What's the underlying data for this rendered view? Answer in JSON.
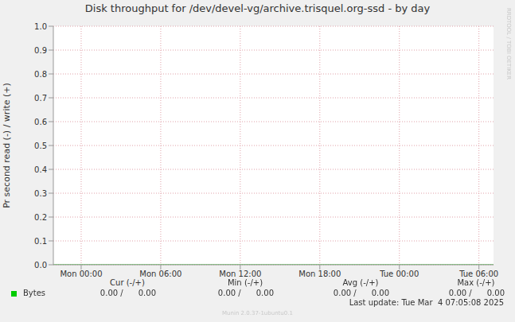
{
  "chart_data": {
    "type": "line",
    "title": "Disk throughput for /dev/devel-vg/archive.trisquel.org-ssd - by day",
    "y_label": "Pr second read (-) / write (+)",
    "x": [
      -2.1,
      0,
      6,
      12,
      18,
      24,
      30,
      31.1
    ],
    "xlim": [
      -2.1,
      31.1
    ],
    "xticks": [
      {
        "value": 0,
        "label": "Mon 00:00"
      },
      {
        "value": 6,
        "label": "Mon 06:00"
      },
      {
        "value": 12,
        "label": "Mon 12:00"
      },
      {
        "value": 18,
        "label": "Mon 18:00"
      },
      {
        "value": 24,
        "label": "Tue 00:00"
      },
      {
        "value": 30,
        "label": "Tue 06:00"
      }
    ],
    "ylim": [
      0,
      1
    ],
    "yticks": [
      {
        "value": 0,
        "label": "0.0"
      },
      0.1,
      0.2,
      0.3,
      0.4,
      0.5,
      0.6,
      0.7,
      0.8,
      0.9,
      {
        "value": 1,
        "label": "1.0"
      }
    ],
    "grid": true,
    "series": [
      {
        "name": "Bytes",
        "color": "#00cc00",
        "values": [
          0,
          0,
          0,
          0,
          0,
          0,
          0,
          0
        ]
      }
    ]
  },
  "summary": {
    "columns": [
      "Cur (-/+)",
      "Min (-/+)",
      "Avg (-/+)",
      "Max (-/+)"
    ],
    "rows": [
      {
        "name": "Bytes",
        "cells": [
          "0.00 /      0.00",
          "0.00 /      0.00",
          "0.00 /      0.00",
          "0.00 /      0.00"
        ]
      }
    ]
  },
  "last_update": "Last update: Tue Mar  4 07:05:08 2025",
  "footer": "Munin 2.0.37-1ubuntu0.1",
  "watermark": "RRDTOOL / TOBI OETIKER"
}
